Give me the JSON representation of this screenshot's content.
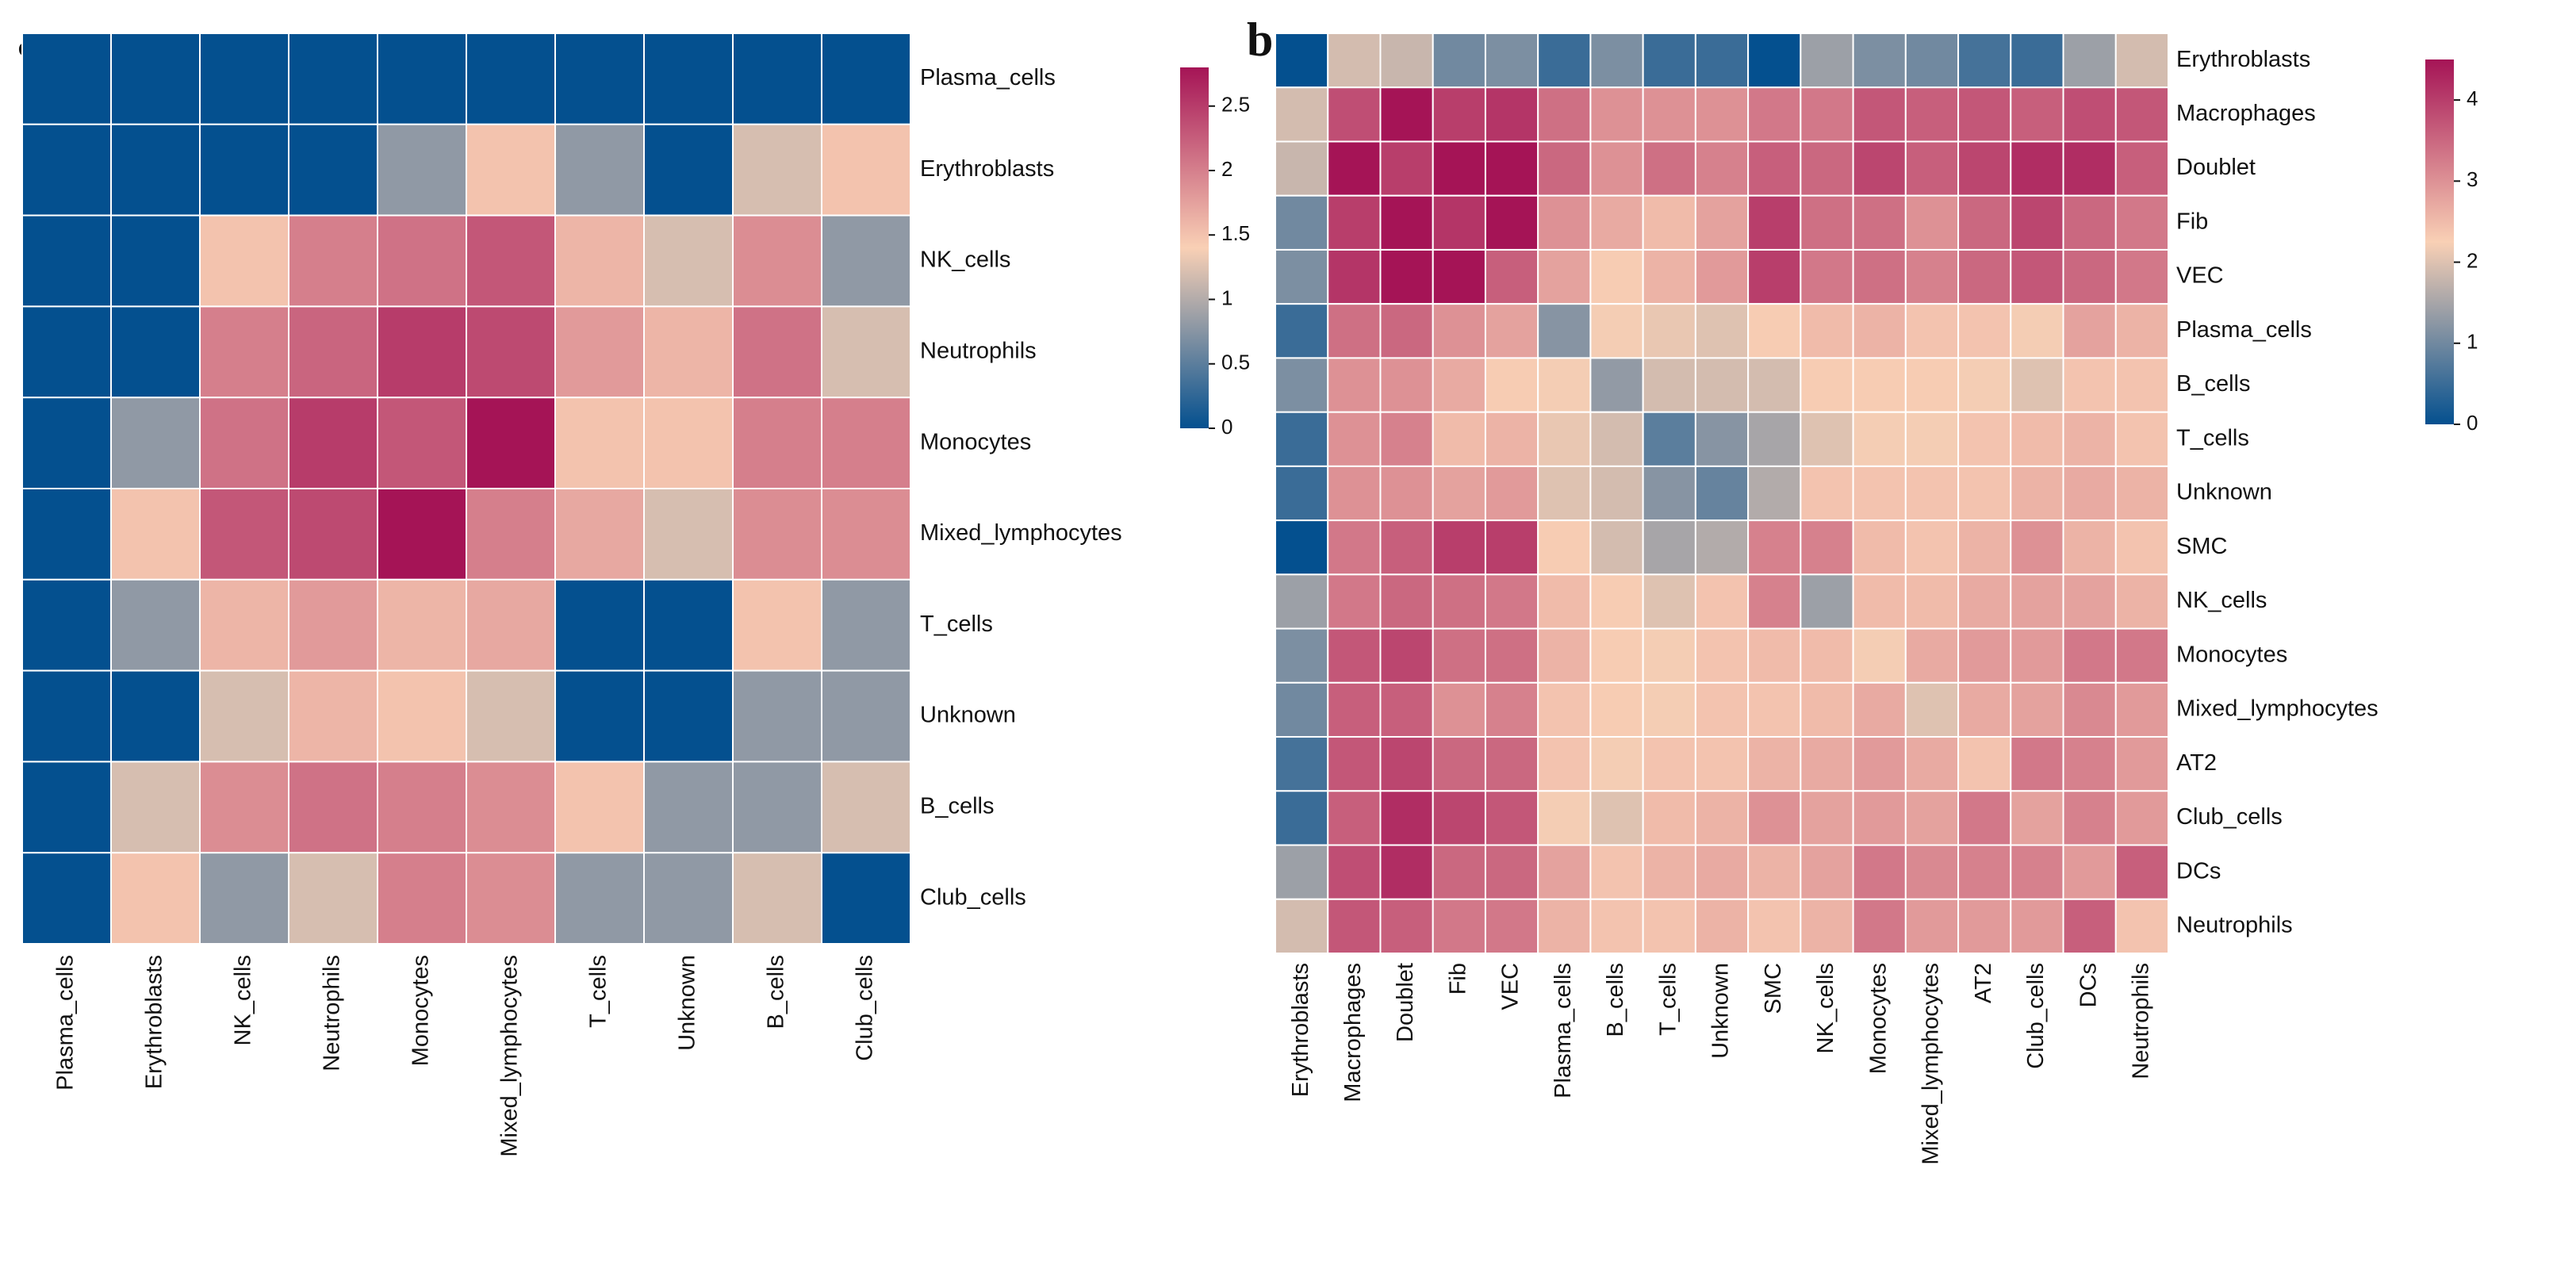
{
  "chart_data": [
    {
      "type": "heatmap",
      "panel": "a",
      "rows": [
        "Plasma_cells",
        "Erythroblasts",
        "NK_cells",
        "Neutrophils",
        "Monocytes",
        "Mixed_lymphocytes",
        "T_cells",
        "Unknown",
        "B_cells",
        "Club_cells"
      ],
      "columns": [
        "Plasma_cells",
        "Erythroblasts",
        "NK_cells",
        "Neutrophils",
        "Monocytes",
        "Mixed_lymphocytes",
        "T_cells",
        "Unknown",
        "B_cells",
        "Club_cells"
      ],
      "values": [
        [
          0.0,
          0.0,
          0.0,
          0.0,
          0.0,
          0.0,
          0.0,
          0.0,
          0.0,
          0.0
        ],
        [
          0.0,
          0.0,
          0.0,
          0.0,
          0.8,
          1.5,
          0.8,
          0.0,
          1.2,
          1.5
        ],
        [
          0.0,
          0.0,
          1.5,
          2.0,
          2.1,
          2.3,
          1.6,
          1.2,
          1.9,
          0.8
        ],
        [
          0.0,
          0.0,
          2.0,
          2.2,
          2.5,
          2.4,
          1.8,
          1.6,
          2.1,
          1.2
        ],
        [
          0.0,
          0.8,
          2.1,
          2.5,
          2.3,
          2.8,
          1.5,
          1.5,
          2.0,
          2.0
        ],
        [
          0.0,
          1.5,
          2.3,
          2.4,
          2.8,
          2.0,
          1.7,
          1.2,
          1.9,
          1.9
        ],
        [
          0.0,
          0.8,
          1.6,
          1.8,
          1.6,
          1.7,
          0.0,
          0.0,
          1.5,
          0.8
        ],
        [
          0.0,
          0.0,
          1.2,
          1.6,
          1.5,
          1.2,
          0.0,
          0.0,
          0.8,
          0.8
        ],
        [
          0.0,
          1.2,
          1.9,
          2.1,
          2.0,
          1.9,
          1.5,
          0.8,
          0.8,
          1.2
        ],
        [
          0.0,
          1.5,
          0.8,
          1.2,
          2.0,
          1.9,
          0.8,
          0.8,
          1.2,
          0.0
        ]
      ],
      "colorbar": {
        "min": 0,
        "max": 2.8,
        "ticks": [
          0,
          0.5,
          1,
          1.5,
          2,
          2.5
        ],
        "tick_labels": [
          "0",
          "0.5",
          "1",
          "1.5",
          "2",
          "2.5"
        ]
      },
      "colors": {
        "low": "#04508f",
        "mid": "#f9d0b5",
        "high": "#a51456",
        "grid": "#ffffff"
      }
    },
    {
      "type": "heatmap",
      "panel": "b",
      "rows": [
        "Erythroblasts",
        "Macrophages",
        "Doublet",
        "Fib",
        "VEC",
        "Plasma_cells",
        "B_cells",
        "T_cells",
        "Unknown",
        "SMC",
        "NK_cells",
        "Monocytes",
        "Mixed_lymphocytes",
        "AT2",
        "Club_cells",
        "DCs",
        "Neutrophils"
      ],
      "columns": [
        "Erythroblasts",
        "Macrophages",
        "Doublet",
        "Fib",
        "VEC",
        "Plasma_cells",
        "B_cells",
        "T_cells",
        "Unknown",
        "SMC",
        "NK_cells",
        "Monocytes",
        "Mixed_lymphocytes",
        "AT2",
        "Club_cells",
        "DCs",
        "Neutrophils"
      ],
      "values": [
        [
          0.0,
          1.9,
          1.8,
          1.0,
          1.1,
          0.5,
          1.1,
          0.5,
          0.5,
          0.0,
          1.4,
          1.1,
          1.0,
          0.6,
          0.5,
          1.4,
          1.9
        ],
        [
          1.9,
          3.8,
          4.5,
          4.0,
          4.1,
          3.4,
          3.0,
          3.0,
          3.0,
          3.3,
          3.3,
          3.7,
          3.6,
          3.7,
          3.6,
          3.8,
          3.7
        ],
        [
          1.8,
          4.5,
          4.0,
          4.5,
          4.5,
          3.5,
          3.0,
          3.4,
          3.2,
          3.6,
          3.5,
          3.9,
          3.6,
          3.9,
          4.2,
          4.2,
          3.6
        ],
        [
          1.0,
          4.0,
          4.5,
          4.1,
          4.5,
          3.0,
          2.7,
          2.5,
          2.8,
          4.0,
          3.4,
          3.4,
          3.0,
          3.5,
          3.9,
          3.5,
          3.3
        ],
        [
          1.1,
          4.1,
          4.5,
          4.5,
          3.6,
          2.8,
          2.3,
          2.6,
          2.9,
          4.0,
          3.3,
          3.4,
          3.2,
          3.5,
          3.7,
          3.5,
          3.3
        ],
        [
          0.5,
          3.4,
          3.5,
          3.0,
          2.8,
          1.2,
          2.2,
          2.1,
          2.0,
          2.3,
          2.5,
          2.6,
          2.4,
          2.4,
          2.2,
          2.8,
          2.6
        ],
        [
          1.1,
          3.0,
          3.0,
          2.7,
          2.3,
          2.2,
          1.3,
          1.9,
          1.9,
          1.9,
          2.3,
          2.3,
          2.3,
          2.2,
          2.0,
          2.4,
          2.4
        ],
        [
          0.5,
          3.0,
          3.2,
          2.5,
          2.6,
          2.1,
          1.9,
          0.8,
          1.2,
          1.5,
          2.0,
          2.2,
          2.2,
          2.4,
          2.5,
          2.6,
          2.4
        ],
        [
          0.5,
          3.0,
          3.0,
          2.8,
          2.9,
          2.0,
          1.9,
          1.2,
          0.9,
          1.6,
          2.4,
          2.4,
          2.4,
          2.4,
          2.6,
          2.7,
          2.6
        ],
        [
          0.0,
          3.3,
          3.6,
          4.0,
          4.0,
          2.3,
          1.9,
          1.5,
          1.6,
          3.2,
          3.2,
          2.5,
          2.4,
          2.6,
          3.0,
          2.6,
          2.4
        ],
        [
          1.4,
          3.3,
          3.5,
          3.4,
          3.3,
          2.5,
          2.3,
          2.0,
          2.4,
          3.2,
          1.4,
          2.5,
          2.5,
          2.7,
          2.8,
          2.8,
          2.6
        ],
        [
          1.1,
          3.7,
          3.9,
          3.4,
          3.4,
          2.6,
          2.3,
          2.2,
          2.4,
          2.5,
          2.5,
          2.2,
          2.7,
          2.9,
          2.9,
          3.3,
          3.3
        ],
        [
          1.0,
          3.6,
          3.6,
          3.0,
          3.2,
          2.4,
          2.3,
          2.2,
          2.4,
          2.4,
          2.5,
          2.7,
          2.0,
          2.7,
          2.8,
          3.1,
          2.9
        ],
        [
          0.6,
          3.7,
          3.9,
          3.5,
          3.5,
          2.4,
          2.2,
          2.4,
          2.4,
          2.6,
          2.7,
          2.9,
          2.7,
          2.4,
          3.3,
          3.2,
          2.9
        ],
        [
          0.5,
          3.6,
          4.2,
          3.9,
          3.7,
          2.2,
          2.0,
          2.5,
          2.6,
          3.0,
          2.8,
          2.9,
          2.8,
          3.3,
          2.8,
          3.2,
          2.9
        ],
        [
          1.4,
          3.8,
          4.2,
          3.5,
          3.5,
          2.8,
          2.4,
          2.6,
          2.7,
          2.6,
          2.8,
          3.3,
          3.1,
          3.2,
          3.2,
          2.9,
          3.6
        ],
        [
          1.9,
          3.7,
          3.6,
          3.3,
          3.3,
          2.6,
          2.4,
          2.4,
          2.6,
          2.4,
          2.6,
          3.3,
          2.9,
          2.9,
          2.9,
          3.6,
          2.4
        ]
      ],
      "colorbar": {
        "min": 0,
        "max": 4.5,
        "ticks": [
          0,
          1,
          2,
          3,
          4
        ],
        "tick_labels": [
          "0",
          "1",
          "2",
          "3",
          "4"
        ]
      },
      "colors": {
        "low": "#04508f",
        "mid": "#f9d0b5",
        "high": "#a51456",
        "grid": "#ffffff"
      }
    }
  ]
}
